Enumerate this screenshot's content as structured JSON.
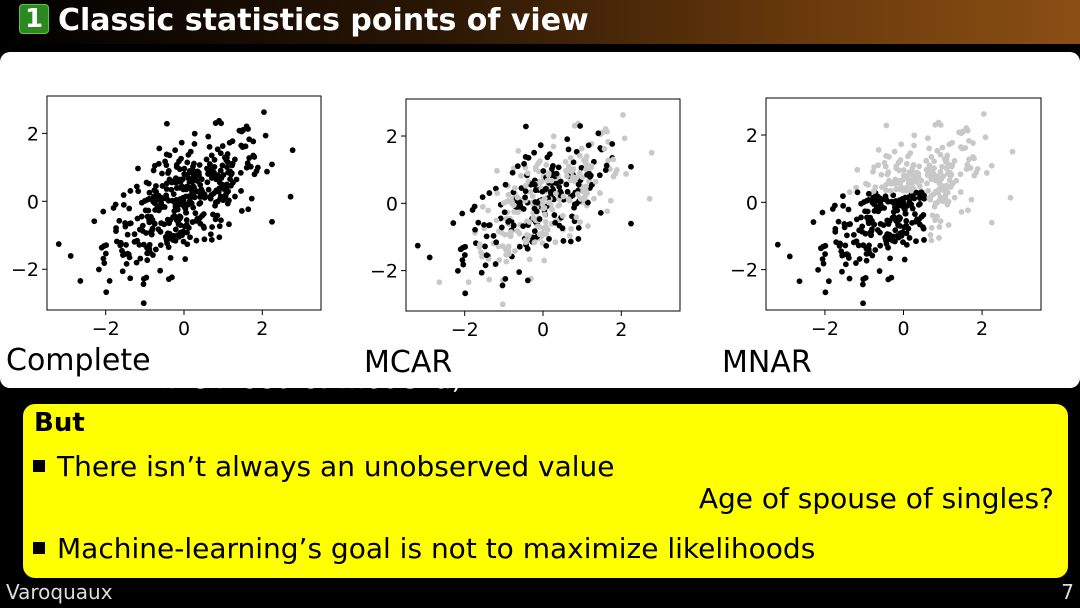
{
  "header": {
    "section_number": "1",
    "title": "Classic statistics points of view"
  },
  "ghost_text": "likelihood of model a).",
  "chart_data": [
    {
      "type": "scatter",
      "caption": "Complete",
      "xlim": [
        -3.5,
        3.5
      ],
      "ylim": [
        -3.2,
        3.1
      ],
      "xticks": [
        "−2",
        "0",
        "2"
      ],
      "yticks": [
        "2",
        "0",
        "−2"
      ],
      "colors": {
        "observed": "#000000"
      },
      "panel": 0
    },
    {
      "type": "scatter",
      "caption": "MCAR",
      "xlim": [
        -3.5,
        3.5
      ],
      "ylim": [
        -3.2,
        3.1
      ],
      "xticks": [
        "−2",
        "0",
        "2"
      ],
      "yticks": [
        "2",
        "0",
        "−2"
      ],
      "colors": {
        "observed": "#000000",
        "missing": "#c8c8c8"
      },
      "panel": 1
    },
    {
      "type": "scatter",
      "caption": "MNAR",
      "xlim": [
        -3.5,
        3.5
      ],
      "ylim": [
        -3.2,
        3.1
      ],
      "xticks": [
        "−2",
        "0",
        "2"
      ],
      "yticks": [
        "2",
        "0",
        "−2"
      ],
      "colors": {
        "observed": "#000000",
        "missing": "#c8c8c8"
      },
      "panel": 2
    }
  ],
  "but_block": {
    "title": "But",
    "bullet1": "There isn’t always an unobserved value",
    "note": "Age of spouse of singles?",
    "bullet2": "Machine-learning’s goal is not to maximize likelihoods"
  },
  "footer": {
    "author": "Varoquaux",
    "page": "7"
  }
}
